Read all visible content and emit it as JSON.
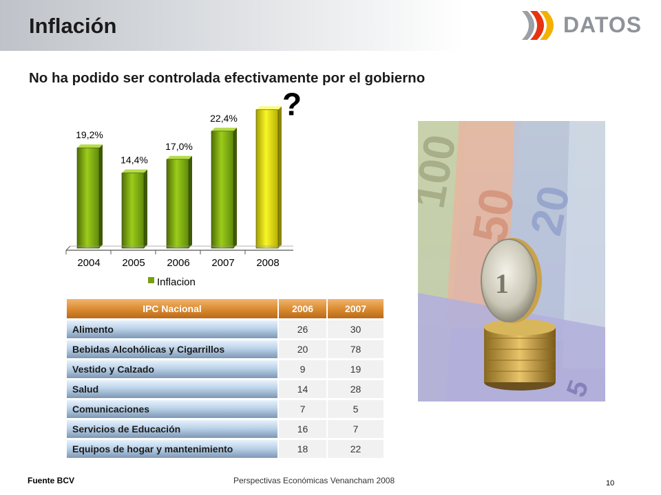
{
  "header": {
    "title": "Inflación",
    "logo_text": "DATOS"
  },
  "subtitle": "No ha podido ser controlada efectivamente por el gobierno",
  "chart_data": {
    "type": "bar",
    "categories": [
      "2004",
      "2005",
      "2006",
      "2007",
      "2008"
    ],
    "values": [
      19.2,
      14.4,
      17.0,
      22.4,
      26.5
    ],
    "data_labels": [
      "19,2%",
      "14,4%",
      "17,0%",
      "22,4%",
      ""
    ],
    "annotation": "?",
    "legend": [
      "Inflacion"
    ],
    "legend_position": "bottom",
    "colors": {
      "bar": "#7aa010",
      "bar_highlight": "#e6e600"
    },
    "ylim": [
      0,
      30
    ],
    "grid": false
  },
  "table": {
    "headers": [
      "IPC Nacional",
      "2006",
      "2007"
    ],
    "rows": [
      [
        "Alimento",
        "26",
        "30"
      ],
      [
        "Bebidas Alcohólicas y Cigarrillos",
        "20",
        "78"
      ],
      [
        "Vestido y Calzado",
        "9",
        "19"
      ],
      [
        "Salud",
        "14",
        "28"
      ],
      [
        "Comunicaciones",
        "7",
        "5"
      ],
      [
        "Servicios de Educación",
        "16",
        "7"
      ],
      [
        "Equipos de hogar y mantenimiento",
        "18",
        "22"
      ]
    ]
  },
  "footer": {
    "source": "Fuente BCV",
    "center": "Perspectivas Económicas Venancham 2008",
    "page": "10"
  }
}
